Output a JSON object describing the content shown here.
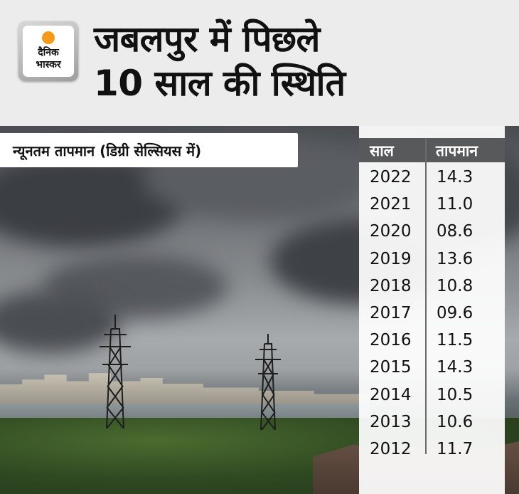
{
  "logo": {
    "line1": "दैनिक",
    "line2": "भास्कर",
    "accent": "#f39a1d"
  },
  "headline": {
    "line1": "जबलपुर में पिछले",
    "line2": "10 साल की स्थिति"
  },
  "legend_label": "न्यूनतम तापमान (डिग्री सेल्सियस में)",
  "table": {
    "headers": {
      "year": "साल",
      "temp": "तापमान"
    },
    "rows": [
      {
        "year": "2022",
        "temp": "14.3"
      },
      {
        "year": "2021",
        "temp": "11.0"
      },
      {
        "year": "2020",
        "temp": "08.6"
      },
      {
        "year": "2019",
        "temp": "13.6"
      },
      {
        "year": "2018",
        "temp": "10.8"
      },
      {
        "year": "2017",
        "temp": "09.6"
      },
      {
        "year": "2016",
        "temp": "11.5"
      },
      {
        "year": "2015",
        "temp": "14.3"
      },
      {
        "year": "2014",
        "temp": "10.5"
      },
      {
        "year": "2013",
        "temp": "10.6"
      },
      {
        "year": "2012",
        "temp": "11.7"
      }
    ]
  },
  "colors": {
    "header_bg": "#ececec",
    "table_header_bg": "#58595b"
  }
}
